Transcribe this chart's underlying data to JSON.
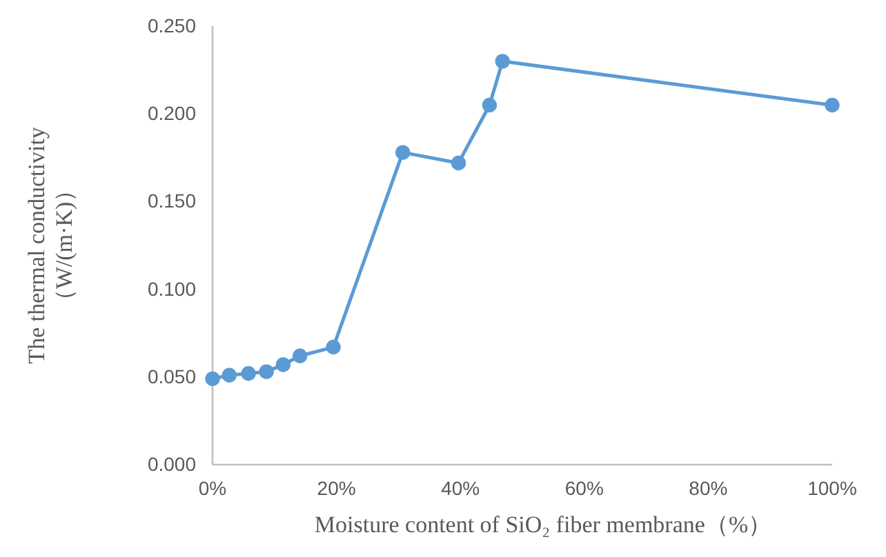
{
  "chart_data": {
    "type": "line",
    "xlabel": "Moisture content of SiO₂ fiber membrane（%）",
    "ylabel": "The thermal conductivity\n（W/(m·K)）",
    "x": [
      0,
      2.7,
      5.8,
      8.7,
      11.4,
      14.1,
      19.5,
      30.7,
      39.7,
      44.7,
      46.8,
      100
    ],
    "series": [
      {
        "color": "#5b9bd5",
        "values": [
          0.049,
          0.051,
          0.052,
          0.053,
          0.057,
          0.062,
          0.067,
          0.178,
          0.172,
          0.205,
          0.23,
          0.205
        ]
      }
    ],
    "xlim": [
      0,
      100
    ],
    "xticks": [
      {
        "value": 0,
        "label": "0%"
      },
      {
        "value": 20,
        "label": "20%"
      },
      {
        "value": 40,
        "label": "40%"
      },
      {
        "value": 60,
        "label": "60%"
      },
      {
        "value": 80,
        "label": "80%"
      },
      {
        "value": 100,
        "label": "100%"
      }
    ],
    "ylim": [
      0,
      0.25
    ],
    "yticks": [
      {
        "value": 0,
        "label": "0.000"
      },
      {
        "value": 0.05,
        "label": "0.050"
      },
      {
        "value": 0.1,
        "label": "0.100"
      },
      {
        "value": 0.15,
        "label": "0.150"
      },
      {
        "value": 0.2,
        "label": "0.200"
      },
      {
        "value": 0.25,
        "label": "0.250"
      }
    ],
    "grid": false,
    "marker": "circle",
    "line_style": "solid"
  }
}
